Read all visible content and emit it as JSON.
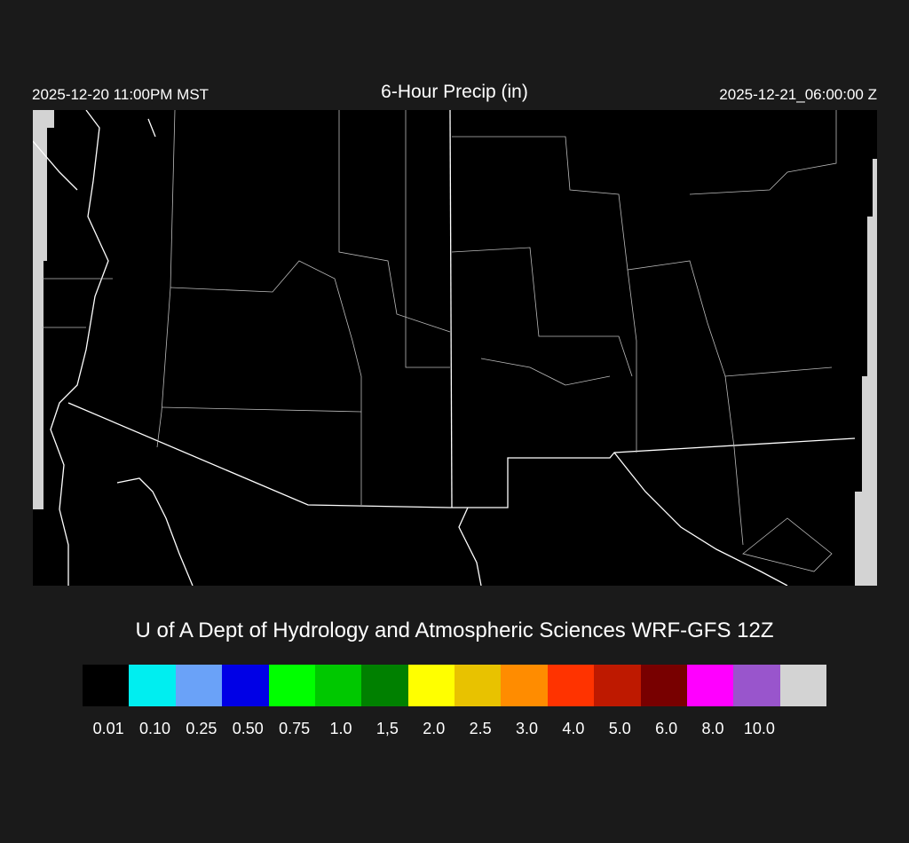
{
  "header": {
    "valid_local": "2025-12-20 11:00PM MST",
    "title": "6-Hour Precip (in)",
    "valid_utc": "2025-12-21_06:00:00 Z"
  },
  "credit": "U of A Dept of Hydrology and Atmospheric Sciences WRF-GFS 12Z",
  "colorbar": {
    "colors": [
      "#000000",
      "#00eef0",
      "#6aa2f8",
      "#0000e6",
      "#00ff00",
      "#00c800",
      "#008000",
      "#ffff00",
      "#e8c200",
      "#ff8c00",
      "#ff3300",
      "#be1900",
      "#780000",
      "#ff00ff",
      "#9955cc",
      "#d3d3d3"
    ],
    "labels": [
      "0.01",
      "0.10",
      "0.25",
      "0.50",
      "0.75",
      "1.0",
      "1,5",
      "2.0",
      "2.5",
      "3.0",
      "4.0",
      "5.0",
      "6.0",
      "8.0",
      "10.0"
    ]
  },
  "map": {
    "background": "#000000",
    "boundary_color": "#ffffff",
    "outside_domain_color": "#d3d3d3",
    "contour_color": "#4a3526"
  }
}
